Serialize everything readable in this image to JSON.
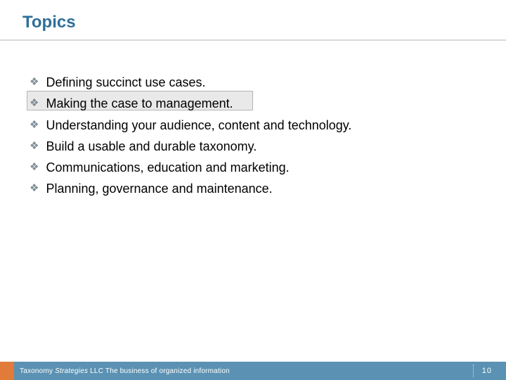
{
  "colors": {
    "title": "#2f6f99",
    "underline": "#d9d9d9",
    "bullet_icon": "#7b8a93",
    "highlight_fill": "#e9e9e9",
    "highlight_border": "#b5b5b5",
    "footer_bg": "#5b92b3",
    "footer_accent": "#e07b3a",
    "footer_text": "#ffffff"
  },
  "title": "Topics",
  "bullets": [
    "Defining succinct use cases.",
    "Making the case to management.",
    "Understanding your audience, content and technology.",
    "Build a usable and durable taxonomy.",
    "Communications, education and marketing.",
    "Planning, governance and maintenance."
  ],
  "bullet_glyph": "❖",
  "highlighted_index": 1,
  "footer": {
    "company_prefix": "Taxonomy ",
    "company_italic": "Strategies",
    "company_suffix": " LLC",
    "tagline": "  The business of organized information",
    "page": "10"
  },
  "fonts": {
    "title_size": 24,
    "bullet_size": 18,
    "footer_size": 10,
    "page_size": 11
  }
}
